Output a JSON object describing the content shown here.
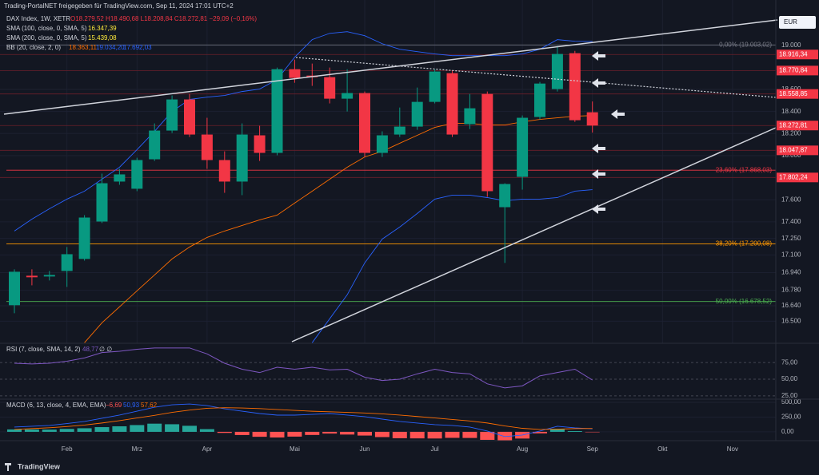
{
  "header": {
    "share": "Trading-PortalNET freigegeben für TradingView.com, Sep 11, 2024 17:01 UTC+2",
    "symbol": "DAX Index, 1W, XETR",
    "ohlc": "O18.279,52 H18.490,68 L18.208,84 C18.272,81 −29,09 (−0,16%)",
    "sma100": "SMA (100, close, 0, SMA, 5)",
    "sma100_value": "16.347,39",
    "sma200": "SMA (200, close, 0, SMA, 5)",
    "sma200_value": "15.439,08",
    "bb": "BB (20, close, 2, 0)",
    "bb_basis": "18.363,11",
    "bb_upper": "19.034,20",
    "bb_lower": "17.692,03",
    "currency": "EUR",
    "brand": "TradingView"
  },
  "chart_data": [
    {
      "type": "candlestick",
      "categories": [
        null,
        null,
        null,
        "Feb",
        null,
        null,
        null,
        "Mrz",
        null,
        null,
        null,
        "Apr",
        null,
        null,
        null,
        null,
        "Mai",
        null,
        null,
        null,
        "Jun",
        null,
        null,
        null,
        "Jul",
        null,
        null,
        null,
        null,
        "Aug",
        null,
        null,
        null,
        "Sep",
        null,
        null,
        null,
        "Okt",
        null,
        null,
        null,
        "Nov",
        null,
        null
      ],
      "open": [
        16645,
        16912,
        16905,
        16955,
        17064,
        17403,
        17765,
        17700,
        17967,
        18227,
        18509,
        18191,
        17960,
        17765,
        18184,
        18025,
        18783,
        18725,
        18711,
        18516,
        18567,
        18025,
        18191,
        18263,
        18487,
        18747,
        18285,
        18559,
        17533,
        17808,
        18350,
        18603,
        18928,
        18393,
        null,
        null,
        null,
        null,
        null,
        null,
        null,
        null,
        null,
        null
      ],
      "high": [
        16970,
        16970,
        16955,
        17172,
        17461,
        17837,
        17880,
        17981,
        18292,
        18545,
        18559,
        18343,
        18039,
        18292,
        18270,
        18798,
        18870,
        18834,
        18798,
        18783,
        18581,
        18220,
        18436,
        18617,
        18783,
        18769,
        18559,
        18581,
        17750,
        18364,
        18668,
        18993,
        18949,
        18490.68,
        null,
        null,
        null,
        null,
        null,
        null,
        null,
        null,
        null,
        null
      ],
      "low": [
        16572,
        16825,
        16869,
        16811,
        17049,
        17389,
        17736,
        17678,
        17952,
        18205,
        18169,
        17880,
        17663,
        17642,
        17952,
        18003,
        18660,
        18632,
        18473,
        18400,
        17988,
        17988,
        18169,
        18234,
        18473,
        18169,
        18241,
        17627,
        17028,
        17692,
        18328,
        18581,
        18306,
        18208.84,
        null,
        null,
        null,
        null,
        null,
        null,
        null,
        null,
        null,
        null
      ],
      "close": [
        16948,
        16898,
        16919,
        17107,
        17439,
        17750,
        17830,
        17960,
        18227,
        18509,
        18191,
        17960,
        17765,
        18191,
        18025,
        18783,
        18704,
        18711,
        18516,
        18567,
        18025,
        18184,
        18263,
        18487,
        18762,
        18191,
        18429,
        17678,
        17743,
        18343,
        18653,
        18921,
        18321,
        18272.81,
        null,
        null,
        null,
        null,
        null,
        null,
        null,
        null,
        null,
        null
      ],
      "up_color": "#089981",
      "down_color": "#f23645",
      "lines": [
        {
          "color": "#2962ff",
          "values": [
            17317,
            17425,
            17519,
            17606,
            17678,
            17786,
            17895,
            18054,
            18220,
            18400,
            18509,
            18530,
            18545,
            18581,
            18603,
            18689,
            18892,
            19051,
            19108,
            19123,
            19087,
            19014,
            18964,
            18942,
            18921,
            18906,
            18906,
            18906,
            18906,
            18921,
            18964,
            19051,
            19036,
            19034.2,
            null,
            null,
            null,
            null,
            null,
            null,
            null,
            null,
            null,
            null
          ]
        },
        {
          "color": "#ff6d00",
          "values": [
            null,
            null,
            null,
            null,
            16305,
            16486,
            16630,
            16775,
            16919,
            17064,
            17172,
            17259,
            17317,
            17367,
            17418,
            17461,
            17570,
            17678,
            17786,
            17895,
            17988,
            18039,
            18112,
            18184,
            18256,
            18292,
            18292,
            18278,
            18278,
            18306,
            18328,
            18343,
            18357,
            18363.11,
            null,
            null,
            null,
            null,
            null,
            null,
            null,
            null,
            null,
            null
          ]
        },
        {
          "color": "#2962ff",
          "values": [
            null,
            null,
            null,
            null,
            null,
            null,
            null,
            null,
            null,
            null,
            null,
            null,
            null,
            null,
            null,
            null,
            null,
            16305,
            16522,
            16739,
            17028,
            17244,
            17353,
            17476,
            17606,
            17642,
            17642,
            17620,
            17591,
            17606,
            17606,
            17620,
            17678,
            17692.03,
            null,
            null,
            null,
            null,
            null,
            null,
            null,
            null,
            null,
            null
          ]
        }
      ],
      "levels": [
        {
          "value": 19003.02,
          "label": "0,00% (19.003,02)",
          "color": "#787b86"
        },
        {
          "value": 17868.03,
          "label": "23,60% (17.868,03)",
          "color": "#f23645"
        },
        {
          "value": 17200.08,
          "label": "38,20% (17.200,08)",
          "color": "#ff9800"
        },
        {
          "value": 16678.52,
          "label": "50,00% (16.678,52)",
          "color": "#4caf50"
        }
      ],
      "price_labels": [
        {
          "value": 18916.34,
          "label": "18.916,34"
        },
        {
          "value": 18770.84,
          "label": "18.770,84"
        },
        {
          "value": 18558.85,
          "label": "18.558,85"
        },
        {
          "value": 18272.81,
          "label": "18.272,81"
        },
        {
          "value": 18047.87,
          "label": "18.047,87"
        },
        {
          "value": 17802.24,
          "label": "17.802,24"
        }
      ],
      "ylim": [
        16300,
        19410
      ],
      "yticks": [
        {
          "value": 19000,
          "label": "19.000"
        },
        {
          "value": 18600,
          "label": "18.600"
        },
        {
          "value": 18400,
          "label": "18.400"
        },
        {
          "value": 18200,
          "label": "18.200"
        },
        {
          "value": 18000,
          "label": "18.000"
        },
        {
          "value": 17600,
          "label": "17.600"
        },
        {
          "value": 17400,
          "label": "17.400"
        },
        {
          "value": 17250,
          "label": "17.250"
        },
        {
          "value": 17100,
          "label": "17.100"
        },
        {
          "value": 16940,
          "label": "16.940"
        },
        {
          "value": 16780,
          "label": "16.780"
        },
        {
          "value": 16640,
          "label": "16.640"
        },
        {
          "value": 16500,
          "label": "16.500"
        }
      ]
    },
    {
      "type": "line",
      "title": "RSI (7, close, SMA, 14, 2)",
      "value_label": "48,77",
      "extra": "∅ ∅",
      "color": "#7e57c2",
      "ylim": [
        20,
        104
      ],
      "yticks": [
        {
          "value": 75,
          "label": "75,00"
        },
        {
          "value": 50,
          "label": "50,00"
        },
        {
          "value": 25,
          "label": "25,00"
        }
      ],
      "values": [
        74,
        73,
        74,
        77,
        82,
        90,
        92,
        95,
        97,
        97,
        97,
        88,
        74,
        65,
        60,
        68,
        65,
        68,
        64,
        65,
        53,
        48,
        50,
        58,
        65,
        60,
        58,
        43,
        37,
        40,
        55,
        60,
        65,
        48.77,
        null,
        null,
        null,
        null,
        null,
        null,
        null,
        null,
        null,
        null
      ]
    },
    {
      "type": "macd",
      "title": "MACD (6, 13, close, 4, EMA, EMA)",
      "value_labels": [
        "−6,69",
        "50,93",
        "57,62"
      ],
      "ylim": [
        -150,
        555
      ],
      "yticks": [
        {
          "value": 500,
          "label": "500,00"
        },
        {
          "value": 250,
          "label": "250,00"
        },
        {
          "value": 0,
          "label": "0,00"
        }
      ],
      "histogram": {
        "up_color": "#26a69a",
        "down_color": "#ff5252",
        "values": [
          41,
          40,
          38,
          50,
          61,
          80,
          94,
          115,
          139,
          129,
          103,
          46,
          -18,
          -54,
          -84,
          -96,
          -81,
          -53,
          -29,
          -46,
          -63,
          -89,
          -109,
          -111,
          -113,
          -102,
          -104,
          -136,
          -181,
          -114,
          -26,
          50,
          13,
          -6.69,
          null,
          null,
          null,
          null,
          null,
          null,
          null,
          null,
          null,
          null
        ]
      },
      "lines": [
        {
          "color": "#2962ff",
          "values": [
            81,
            95,
            108,
            140,
            176,
            230,
            284,
            350,
            419,
            459,
            473,
            446,
            392,
            351,
            311,
            284,
            284,
            297,
            311,
            284,
            257,
            216,
            176,
            149,
            122,
            108,
            81,
            14,
            -81,
            -54,
            14,
            95,
            68,
            50.93,
            null,
            null,
            null,
            null,
            null,
            null,
            null,
            null,
            null,
            null
          ]
        },
        {
          "color": "#ff6d00",
          "values": [
            40,
            55,
            70,
            90,
            115,
            150,
            190,
            235,
            280,
            330,
            370,
            400,
            410,
            405,
            395,
            380,
            365,
            350,
            340,
            330,
            320,
            305,
            285,
            260,
            235,
            210,
            185,
            150,
            100,
            60,
            40,
            45,
            55,
            57.62,
            null,
            null,
            null,
            null,
            null,
            null,
            null,
            null,
            null,
            null
          ]
        }
      ]
    }
  ]
}
